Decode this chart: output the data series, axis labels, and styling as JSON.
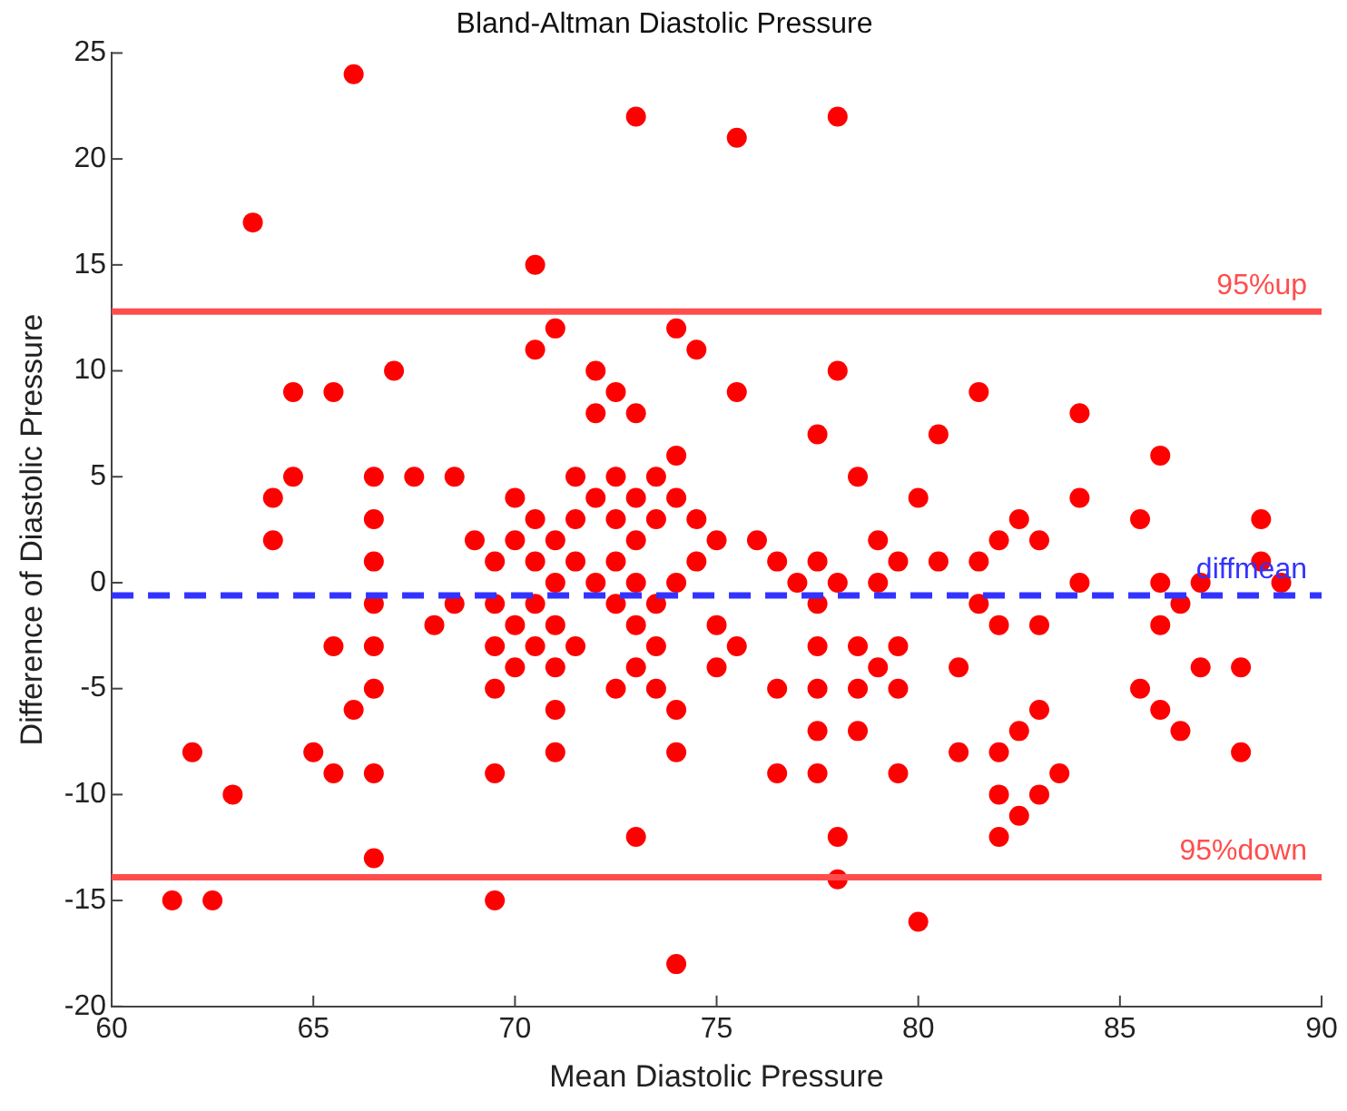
{
  "chart_data": {
    "type": "scatter",
    "title": "Bland-Altman Diastolic Pressure",
    "xlabel": "Mean Diastolic Pressure",
    "ylabel": "Difference of Diastolic Pressure",
    "x": [
      61.5,
      62,
      62.5,
      63,
      63.5,
      64,
      64,
      64.5,
      64.5,
      65,
      65.5,
      65.5,
      65.5,
      66,
      66,
      66.5,
      66.5,
      66.5,
      66.5,
      66.5,
      66.5,
      66.5,
      66.5,
      67,
      67.5,
      68,
      68.5,
      68.5,
      69,
      69.5,
      69.5,
      69.5,
      69.5,
      69.5,
      69.5,
      70,
      70,
      70,
      70,
      70.5,
      70.5,
      70.5,
      70.5,
      70.5,
      70.5,
      71,
      71,
      71,
      71,
      71,
      71,
      71,
      71.5,
      71.5,
      71.5,
      71.5,
      72,
      72,
      72,
      72,
      72.5,
      72.5,
      72.5,
      72.5,
      72.5,
      72.5,
      73,
      73,
      73,
      73,
      73,
      73,
      73,
      73,
      73.5,
      73.5,
      73.5,
      73.5,
      73.5,
      74,
      74,
      74,
      74,
      74,
      74,
      74,
      74.5,
      74.5,
      74.5,
      75,
      75,
      75,
      75.5,
      75.5,
      75.5,
      76,
      76.5,
      76.5,
      76.5,
      77,
      77.5,
      77.5,
      77.5,
      77.5,
      77.5,
      77.5,
      77.5,
      78,
      78,
      78,
      78,
      78,
      78.5,
      78.5,
      78.5,
      78.5,
      79,
      79,
      79,
      79.5,
      79.5,
      79.5,
      79.5,
      80,
      80,
      80.5,
      80.5,
      81,
      81,
      81.5,
      81.5,
      81.5,
      82,
      82,
      82,
      82,
      82,
      82.5,
      82.5,
      82.5,
      83,
      83,
      83,
      83,
      83.5,
      84,
      84,
      84,
      85.5,
      85.5,
      86,
      86,
      86,
      86,
      86.5,
      86.5,
      87,
      87,
      88,
      88,
      88.5,
      88.5,
      89
    ],
    "series": [
      {
        "color": "#ff0000",
        "values": [
          -15,
          -8,
          -15,
          -10,
          17,
          4,
          2,
          9,
          5,
          -8,
          9,
          -3,
          -9,
          24,
          -6,
          5,
          3,
          1,
          -1,
          -3,
          -5,
          -9,
          -13,
          10,
          5,
          -2,
          5,
          -1,
          2,
          1,
          -1,
          -3,
          -5,
          -9,
          -15,
          4,
          2,
          -2,
          -4,
          15,
          11,
          3,
          1,
          -1,
          -3,
          12,
          2,
          0,
          -2,
          -4,
          -6,
          -8,
          5,
          3,
          1,
          -3,
          10,
          8,
          4,
          0,
          9,
          5,
          3,
          1,
          -1,
          -5,
          22,
          8,
          4,
          2,
          0,
          -2,
          -4,
          -12,
          5,
          3,
          -1,
          -3,
          -5,
          12,
          6,
          4,
          0,
          -6,
          -8,
          -18,
          11,
          3,
          1,
          2,
          -2,
          -4,
          21,
          9,
          -3,
          2,
          1,
          -5,
          -9,
          0,
          7,
          1,
          -1,
          -3,
          -5,
          -7,
          -9,
          22,
          10,
          0,
          -12,
          -14,
          5,
          -3,
          -5,
          -7,
          2,
          0,
          -4,
          1,
          -3,
          -5,
          -9,
          4,
          -16,
          7,
          1,
          -4,
          -8,
          9,
          1,
          -1,
          2,
          -2,
          -8,
          -10,
          -12,
          3,
          -7,
          -11,
          2,
          -2,
          -6,
          -10,
          -9,
          8,
          4,
          0,
          3,
          -5,
          6,
          0,
          -2,
          -6,
          -1,
          -7,
          0,
          -4,
          -4,
          -8,
          3,
          1,
          0
        ]
      }
    ],
    "marker": "circle",
    "xlim": [
      60,
      90
    ],
    "xticks": [
      60,
      65,
      70,
      75,
      80,
      85,
      90
    ],
    "ylim": [
      -20,
      25
    ],
    "yticks": [
      -20,
      -15,
      -10,
      -5,
      0,
      5,
      10,
      15,
      20,
      25
    ],
    "ref_lines": [
      {
        "axis": "y",
        "value": 12.8,
        "label": "95%up",
        "color": "#ff4d4d",
        "line_style": "solid"
      },
      {
        "axis": "y",
        "value": -0.6,
        "label": "diffmean",
        "color": "#3333ff",
        "line_style": "dashed"
      },
      {
        "axis": "y",
        "value": -13.9,
        "label": "95%down",
        "color": "#ff4d4d",
        "line_style": "solid"
      }
    ]
  }
}
